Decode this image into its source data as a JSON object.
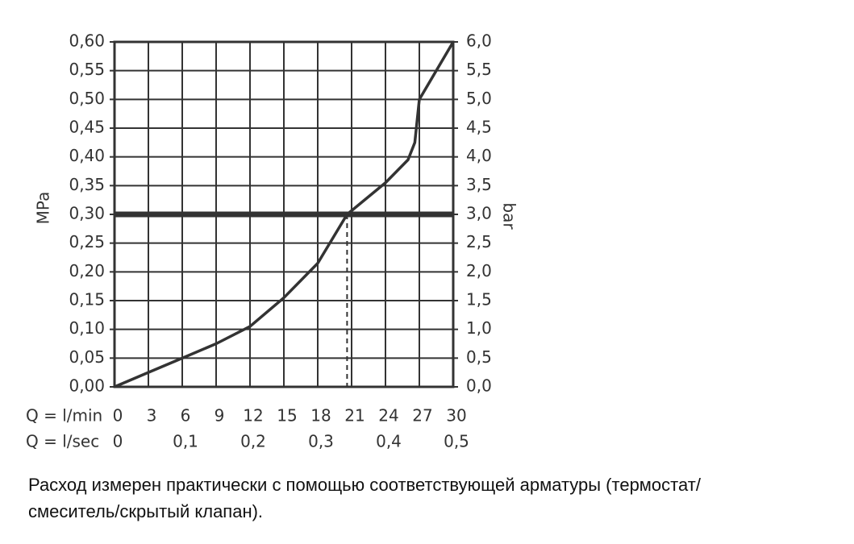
{
  "chart_data": {
    "type": "line",
    "x": [
      0,
      3,
      6,
      9,
      12,
      15,
      18,
      20.6,
      24,
      26,
      26.6,
      27,
      30
    ],
    "values": [
      0,
      0.025,
      0.05,
      0.075,
      0.105,
      0.155,
      0.215,
      0.3,
      0.355,
      0.395,
      0.425,
      0.5,
      0.6
    ],
    "color": "#333333",
    "xlabel": "Q = l/min",
    "xlim": [
      0,
      30
    ],
    "xticks": [
      0,
      3,
      6,
      9,
      12,
      15,
      18,
      21,
      24,
      27,
      30
    ],
    "x2label": "Q = l/sec",
    "x2lim": [
      0,
      0.5
    ],
    "x2ticks": [
      0,
      {
        "value": 0.1,
        "label": "0,1"
      },
      {
        "value": 0.2,
        "label": "0,2"
      },
      {
        "value": 0.3,
        "label": "0,3"
      },
      {
        "value": 0.4,
        "label": "0,4"
      },
      {
        "value": 0.5,
        "label": "0,5"
      }
    ],
    "ylabel": "MPa",
    "ylim": [
      0,
      0.6
    ],
    "yticks": [
      {
        "value": 0,
        "label": "0,00"
      },
      {
        "value": 0.05,
        "label": "0,05"
      },
      {
        "value": 0.1,
        "label": "0,10"
      },
      {
        "value": 0.15,
        "label": "0,15"
      },
      {
        "value": 0.2,
        "label": "0,20"
      },
      {
        "value": 0.25,
        "label": "0,25"
      },
      {
        "value": 0.3,
        "label": "0,30"
      },
      {
        "value": 0.35,
        "label": "0,35"
      },
      {
        "value": 0.4,
        "label": "0,40"
      },
      {
        "value": 0.45,
        "label": "0,45"
      },
      {
        "value": 0.5,
        "label": "0,50"
      },
      {
        "value": 0.55,
        "label": "0,55"
      },
      {
        "value": 0.6,
        "label": "0,60"
      }
    ],
    "y2label": "bar",
    "y2lim": [
      0,
      6
    ],
    "y2ticks": [
      {
        "value": 0,
        "label": "0,0"
      },
      {
        "value": 0.5,
        "label": "0,5"
      },
      {
        "value": 1,
        "label": "1,0"
      },
      {
        "value": 1.5,
        "label": "1,5"
      },
      {
        "value": 2,
        "label": "2,0"
      },
      {
        "value": 2.5,
        "label": "2,5"
      },
      {
        "value": 3,
        "label": "3,0"
      },
      {
        "value": 3.5,
        "label": "3,5"
      },
      {
        "value": 4,
        "label": "4,0"
      },
      {
        "value": 4.5,
        "label": "4,5"
      },
      {
        "value": 5,
        "label": "5,0"
      },
      {
        "value": 5.5,
        "label": "5,5"
      },
      {
        "value": 6,
        "label": "6,0"
      }
    ],
    "grid": true,
    "reference_y": 0.3,
    "reference_x": 20.6,
    "note_lines": [
      "Расход измерен практически с помощью соответствующей арматуры (термостат/",
      "смеситель/скрытый клапан)."
    ]
  }
}
